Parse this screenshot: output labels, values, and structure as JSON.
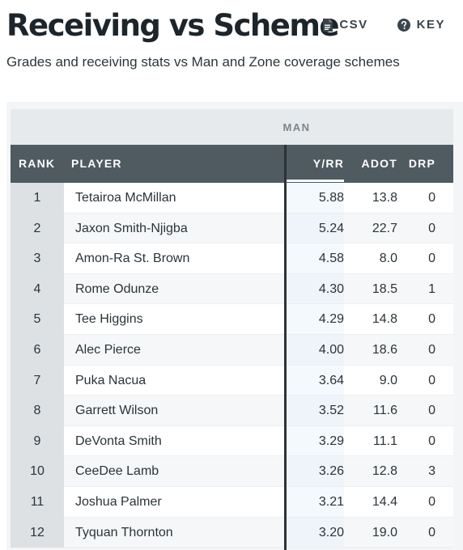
{
  "header": {
    "title": "Receiving vs Scheme",
    "subtitle": "Grades and receiving stats vs Man and Zone coverage schemes",
    "actions": [
      {
        "label": "CSV",
        "icon": "file-icon"
      },
      {
        "label": "KEY",
        "icon": "help-circle-icon"
      }
    ]
  },
  "table": {
    "group_label": "MAN",
    "columns": {
      "rank": "RANK",
      "player": "PLAYER",
      "yrr": "Y/RR",
      "adot": "ADOT",
      "drp": "DRP"
    },
    "sorted_by": "Y/RR",
    "rows": [
      {
        "rank": "1",
        "player": "Tetairoa McMillan",
        "yrr": "5.88",
        "adot": "13.8",
        "drp": "0"
      },
      {
        "rank": "2",
        "player": "Jaxon Smith-Njigba",
        "yrr": "5.24",
        "adot": "22.7",
        "drp": "0"
      },
      {
        "rank": "3",
        "player": "Amon-Ra St. Brown",
        "yrr": "4.58",
        "adot": "8.0",
        "drp": "0"
      },
      {
        "rank": "4",
        "player": "Rome Odunze",
        "yrr": "4.30",
        "adot": "18.5",
        "drp": "1"
      },
      {
        "rank": "5",
        "player": "Tee Higgins",
        "yrr": "4.29",
        "adot": "14.8",
        "drp": "0"
      },
      {
        "rank": "6",
        "player": "Alec Pierce",
        "yrr": "4.00",
        "adot": "18.6",
        "drp": "0"
      },
      {
        "rank": "7",
        "player": "Puka Nacua",
        "yrr": "3.64",
        "adot": "9.0",
        "drp": "0"
      },
      {
        "rank": "8",
        "player": "Garrett Wilson",
        "yrr": "3.52",
        "adot": "11.6",
        "drp": "0"
      },
      {
        "rank": "9",
        "player": "DeVonta Smith",
        "yrr": "3.29",
        "adot": "11.1",
        "drp": "0"
      },
      {
        "rank": "10",
        "player": "CeeDee Lamb",
        "yrr": "3.26",
        "adot": "12.8",
        "drp": "3"
      },
      {
        "rank": "11",
        "player": "Joshua Palmer",
        "yrr": "3.21",
        "adot": "14.4",
        "drp": "0"
      },
      {
        "rank": "12",
        "player": "Tyquan Thornton",
        "yrr": "3.20",
        "adot": "19.0",
        "drp": "0"
      }
    ]
  }
}
